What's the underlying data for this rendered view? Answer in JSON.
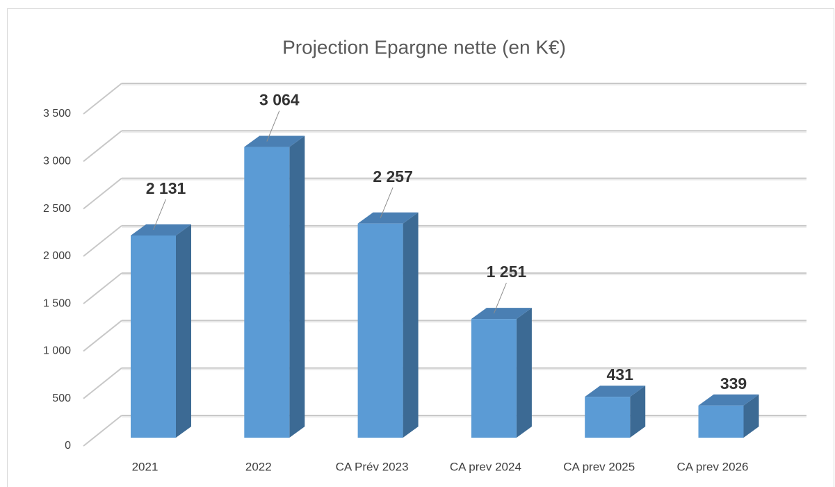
{
  "chart_data": {
    "type": "bar3d",
    "title": "Projection Epargne nette (en K€)",
    "categories": [
      "2021",
      "2022",
      "CA Prév 2023",
      "CA prev 2024",
      "CA prev 2025",
      "CA prev 2026"
    ],
    "values": [
      2131,
      3064,
      2257,
      1251,
      431,
      339
    ],
    "value_labels": [
      "2 131",
      "3 064",
      "2 257",
      "1 251",
      "431",
      "339"
    ],
    "color": "#5b9bd5",
    "ylim": [
      0,
      3500
    ],
    "yticks": [
      0,
      500,
      {
        "value": 1000,
        "label": "1 000"
      },
      {
        "value": 1500,
        "label": "1 500"
      },
      {
        "value": 2000,
        "label": "2 000"
      },
      {
        "value": 2500,
        "label": "2 500"
      },
      {
        "value": 3000,
        "label": "3 000"
      },
      {
        "value": 3500,
        "label": "3 500"
      }
    ],
    "grid": true
  }
}
